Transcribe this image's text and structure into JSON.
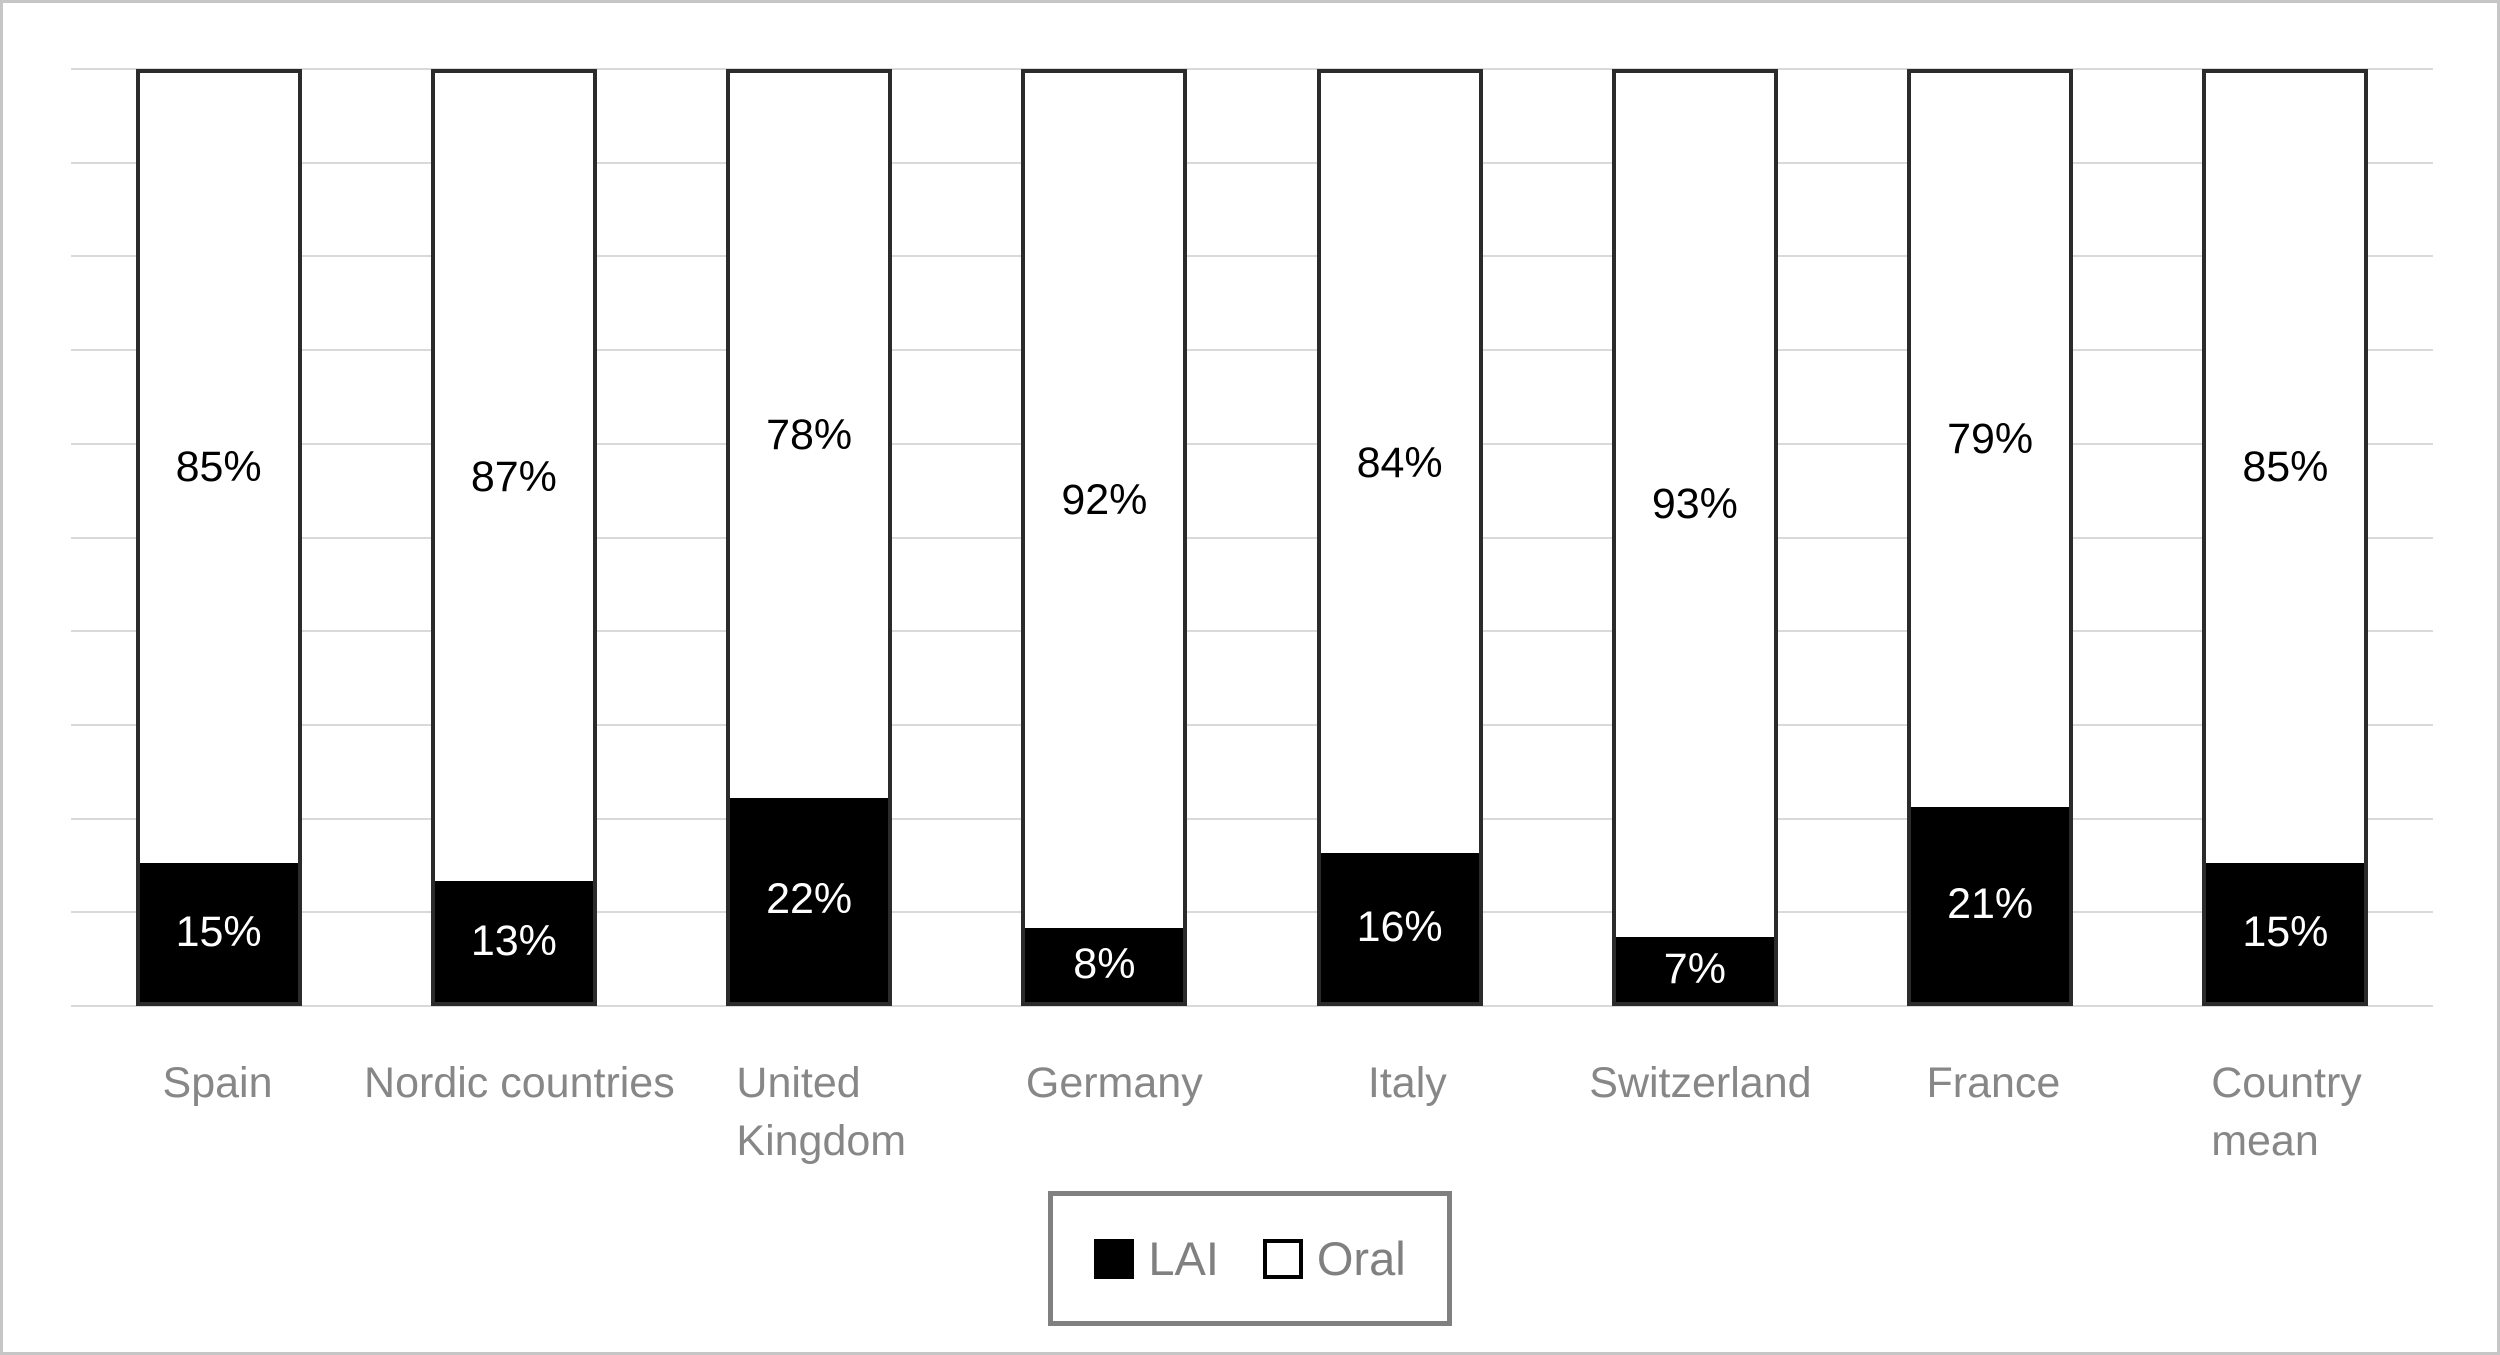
{
  "chart_data": {
    "type": "bar",
    "subtype": "stacked-100-percent-column",
    "title": "",
    "xlabel": "",
    "ylabel": "",
    "ylim": [
      0,
      100
    ],
    "gridline_step_percent": 10,
    "grid": true,
    "legend_position": "bottom-center",
    "categories": [
      "Spain",
      "Nordic countries",
      "United Kingdom",
      "Germany",
      "Italy",
      "Switzerland",
      "France",
      "Country mean"
    ],
    "category_label_lines": [
      [
        "Spain"
      ],
      [
        "Nordic countries"
      ],
      [
        "United",
        "Kingdom"
      ],
      [
        "Germany"
      ],
      [
        "Italy"
      ],
      [
        "Switzerland"
      ],
      [
        "France"
      ],
      [
        "Country",
        "mean"
      ]
    ],
    "series": [
      {
        "name": "LAI",
        "color": "#000000",
        "text_color": "#ffffff",
        "values": [
          15,
          13,
          22,
          8,
          16,
          7,
          21,
          15
        ]
      },
      {
        "name": "Oral",
        "color": "#ffffff",
        "text_color": "#000000",
        "values": [
          85,
          87,
          78,
          92,
          84,
          93,
          79,
          85
        ]
      }
    ],
    "data_label_format": "{value}%",
    "data_labels_inside_segments": true
  },
  "style_colors": {
    "gridline": "#d9d9d9",
    "bar_border": "#2b2b2b",
    "category_label": "#878787",
    "legend_border": "#808080",
    "legend_text": "#808080",
    "canvas_frame": "#c6c6c6"
  }
}
